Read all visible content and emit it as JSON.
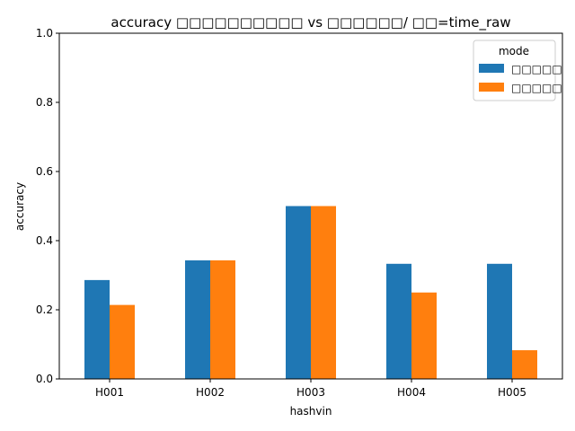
{
  "chart_data": {
    "type": "bar",
    "title": "accuracy □□□□□□□□□□ vs □□□□□□/ □□=time_raw",
    "xlabel": "hashvin",
    "ylabel": "accuracy",
    "categories": [
      "H001",
      "H002",
      "H003",
      "H004",
      "H005"
    ],
    "ylim": [
      0,
      1.0
    ],
    "yticks": [
      "0.0",
      "0.2",
      "0.4",
      "0.6",
      "0.8",
      "1.0"
    ],
    "series": [
      {
        "name": "□□□□□",
        "color": "#1f77b4",
        "values": [
          0.286,
          0.343,
          0.5,
          0.333,
          0.333
        ]
      },
      {
        "name": "□□□□□",
        "color": "#ff7f0e",
        "values": [
          0.214,
          0.343,
          0.5,
          0.25,
          0.083
        ]
      }
    ],
    "legend": {
      "title": "mode",
      "position": "top-right"
    },
    "grid": false
  }
}
